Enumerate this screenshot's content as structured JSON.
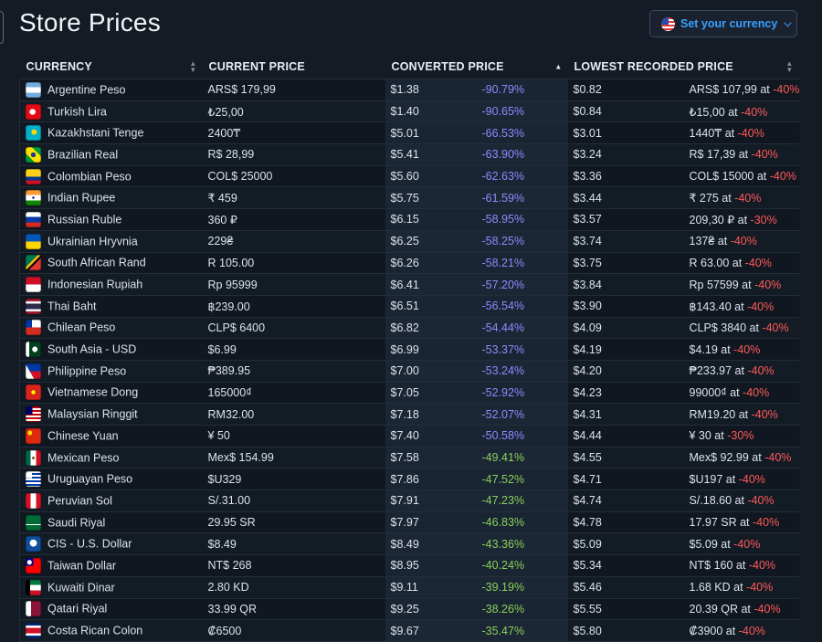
{
  "page": {
    "title": "Store Prices"
  },
  "currency_button": {
    "label": "Set your currency"
  },
  "table": {
    "headers": {
      "currency": "CURRENCY",
      "current": "CURRENT PRICE",
      "converted": "CONVERTED PRICE",
      "lowest": "LOWEST RECORDED PRICE"
    },
    "rows": [
      {
        "name": "Argentine Peso",
        "flag": "ar",
        "current": "ARS$ 179,99",
        "converted": "$1.38",
        "pct": "-90.79%",
        "lowest": "$0.82",
        "low_local": "ARS$ 107,99 at ",
        "low_pct": "-40%"
      },
      {
        "name": "Turkish Lira",
        "flag": "tr",
        "current": "₺25,00",
        "converted": "$1.40",
        "pct": "-90.65%",
        "lowest": "$0.84",
        "low_local": "₺15,00 at ",
        "low_pct": "-40%"
      },
      {
        "name": "Kazakhstani Tenge",
        "flag": "kz",
        "current": "2400₸",
        "converted": "$5.01",
        "pct": "-66.53%",
        "lowest": "$3.01",
        "low_local": "1440₸ at ",
        "low_pct": "-40%"
      },
      {
        "name": "Brazilian Real",
        "flag": "br",
        "current": "R$ 28,99",
        "converted": "$5.41",
        "pct": "-63.90%",
        "lowest": "$3.24",
        "low_local": "R$ 17,39 at ",
        "low_pct": "-40%"
      },
      {
        "name": "Colombian Peso",
        "flag": "co",
        "current": "COL$ 25000",
        "converted": "$5.60",
        "pct": "-62.63%",
        "lowest": "$3.36",
        "low_local": "COL$ 15000 at ",
        "low_pct": "-40%"
      },
      {
        "name": "Indian Rupee",
        "flag": "in",
        "current": "₹ 459",
        "converted": "$5.75",
        "pct": "-61.59%",
        "lowest": "$3.44",
        "low_local": "₹ 275 at ",
        "low_pct": "-40%"
      },
      {
        "name": "Russian Ruble",
        "flag": "ru",
        "current": "360 ₽",
        "converted": "$6.15",
        "pct": "-58.95%",
        "lowest": "$3.57",
        "low_local": "209,30 ₽ at ",
        "low_pct": "-30%"
      },
      {
        "name": "Ukrainian Hryvnia",
        "flag": "ua",
        "current": "229₴",
        "converted": "$6.25",
        "pct": "-58.25%",
        "lowest": "$3.74",
        "low_local": "137₴ at ",
        "low_pct": "-40%"
      },
      {
        "name": "South African Rand",
        "flag": "za",
        "current": "R 105.00",
        "converted": "$6.26",
        "pct": "-58.21%",
        "lowest": "$3.75",
        "low_local": "R 63.00 at ",
        "low_pct": "-40%"
      },
      {
        "name": "Indonesian Rupiah",
        "flag": "id",
        "current": "Rp 95999",
        "converted": "$6.41",
        "pct": "-57.20%",
        "lowest": "$3.84",
        "low_local": "Rp 57599 at ",
        "low_pct": "-40%"
      },
      {
        "name": "Thai Baht",
        "flag": "th",
        "current": "฿239.00",
        "converted": "$6.51",
        "pct": "-56.54%",
        "lowest": "$3.90",
        "low_local": "฿143.40 at ",
        "low_pct": "-40%"
      },
      {
        "name": "Chilean Peso",
        "flag": "cl",
        "current": "CLP$ 6400",
        "converted": "$6.82",
        "pct": "-54.44%",
        "lowest": "$4.09",
        "low_local": "CLP$ 3840 at ",
        "low_pct": "-40%"
      },
      {
        "name": "South Asia - USD",
        "flag": "pk",
        "current": "$6.99",
        "converted": "$6.99",
        "pct": "-53.37%",
        "lowest": "$4.19",
        "low_local": "$4.19 at ",
        "low_pct": "-40%"
      },
      {
        "name": "Philippine Peso",
        "flag": "ph",
        "current": "₱389.95",
        "converted": "$7.00",
        "pct": "-53.24%",
        "lowest": "$4.20",
        "low_local": "₱233.97 at ",
        "low_pct": "-40%"
      },
      {
        "name": "Vietnamese Dong",
        "flag": "vn",
        "current": "165000₫",
        "converted": "$7.05",
        "pct": "-52.92%",
        "lowest": "$4.23",
        "low_local": "99000₫ at ",
        "low_pct": "-40%"
      },
      {
        "name": "Malaysian Ringgit",
        "flag": "my",
        "current": "RM32.00",
        "converted": "$7.18",
        "pct": "-52.07%",
        "lowest": "$4.31",
        "low_local": "RM19.20 at ",
        "low_pct": "-40%"
      },
      {
        "name": "Chinese Yuan",
        "flag": "cn",
        "current": "¥ 50",
        "converted": "$7.40",
        "pct": "-50.58%",
        "lowest": "$4.44",
        "low_local": "¥ 30 at ",
        "low_pct": "-30%"
      },
      {
        "name": "Mexican Peso",
        "flag": "mx",
        "current": "Mex$ 154.99",
        "converted": "$7.58",
        "pct": "-49.41%",
        "lowest": "$4.55",
        "low_local": "Mex$ 92.99 at ",
        "low_pct": "-40%"
      },
      {
        "name": "Uruguayan Peso",
        "flag": "uy",
        "current": "$U329",
        "converted": "$7.86",
        "pct": "-47.52%",
        "lowest": "$4.71",
        "low_local": "$U197 at ",
        "low_pct": "-40%"
      },
      {
        "name": "Peruvian Sol",
        "flag": "pe",
        "current": "S/.31.00",
        "converted": "$7.91",
        "pct": "-47.23%",
        "lowest": "$4.74",
        "low_local": "S/.18.60 at ",
        "low_pct": "-40%"
      },
      {
        "name": "Saudi Riyal",
        "flag": "sa",
        "current": "29.95 SR",
        "converted": "$7.97",
        "pct": "-46.83%",
        "lowest": "$4.78",
        "low_local": "17.97 SR at ",
        "low_pct": "-40%"
      },
      {
        "name": "CIS - U.S. Dollar",
        "flag": "cis",
        "current": "$8.49",
        "converted": "$8.49",
        "pct": "-43.36%",
        "lowest": "$5.09",
        "low_local": "$5.09 at ",
        "low_pct": "-40%"
      },
      {
        "name": "Taiwan Dollar",
        "flag": "tw",
        "current": "NT$ 268",
        "converted": "$8.95",
        "pct": "-40.24%",
        "lowest": "$5.34",
        "low_local": "NT$ 160 at ",
        "low_pct": "-40%"
      },
      {
        "name": "Kuwaiti Dinar",
        "flag": "kw",
        "current": "2.80 KD",
        "converted": "$9.11",
        "pct": "-39.19%",
        "lowest": "$5.46",
        "low_local": "1.68 KD at ",
        "low_pct": "-40%"
      },
      {
        "name": "Qatari Riyal",
        "flag": "qa",
        "current": "33.99 QR",
        "converted": "$9.25",
        "pct": "-38.26%",
        "lowest": "$5.55",
        "low_local": "20.39 QR at ",
        "low_pct": "-40%"
      },
      {
        "name": "Costa Rican Colon",
        "flag": "cr",
        "current": "₡6500",
        "converted": "$9.67",
        "pct": "-35.47%",
        "lowest": "$5.80",
        "low_local": "₡3900 at ",
        "low_pct": "-40%"
      }
    ]
  }
}
